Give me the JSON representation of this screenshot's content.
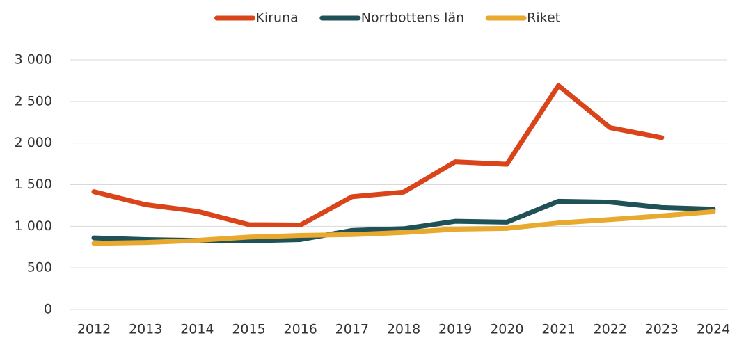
{
  "chart_data": {
    "type": "line",
    "categories": [
      "2012",
      "2013",
      "2014",
      "2015",
      "2016",
      "2017",
      "2018",
      "2019",
      "2020",
      "2021",
      "2022",
      "2023",
      "2024"
    ],
    "series": [
      {
        "name": "Kiruna",
        "color": "#d9441a",
        "values": [
          1415,
          1260,
          1180,
          1020,
          1015,
          1355,
          1410,
          1775,
          1745,
          2690,
          2185,
          2065,
          null
        ]
      },
      {
        "name": "Norrbottens län",
        "color": "#1f5257",
        "values": [
          860,
          840,
          830,
          825,
          840,
          950,
          970,
          1060,
          1050,
          1300,
          1290,
          1225,
          1205
        ]
      },
      {
        "name": "Riket",
        "color": "#e8a92e",
        "values": [
          795,
          805,
          830,
          870,
          890,
          900,
          925,
          965,
          975,
          1040,
          1080,
          1125,
          1175
        ]
      }
    ],
    "ylim": [
      0,
      3000
    ],
    "yticks": [
      0,
      500,
      {
        "value": 1000,
        "label": "1 000"
      },
      {
        "value": 1500,
        "label": "1 500"
      },
      {
        "value": 2000,
        "label": "2 000"
      },
      {
        "value": 2500,
        "label": "2 500"
      },
      {
        "value": 3000,
        "label": "3 000"
      }
    ],
    "grid": true,
    "legend": "top"
  }
}
